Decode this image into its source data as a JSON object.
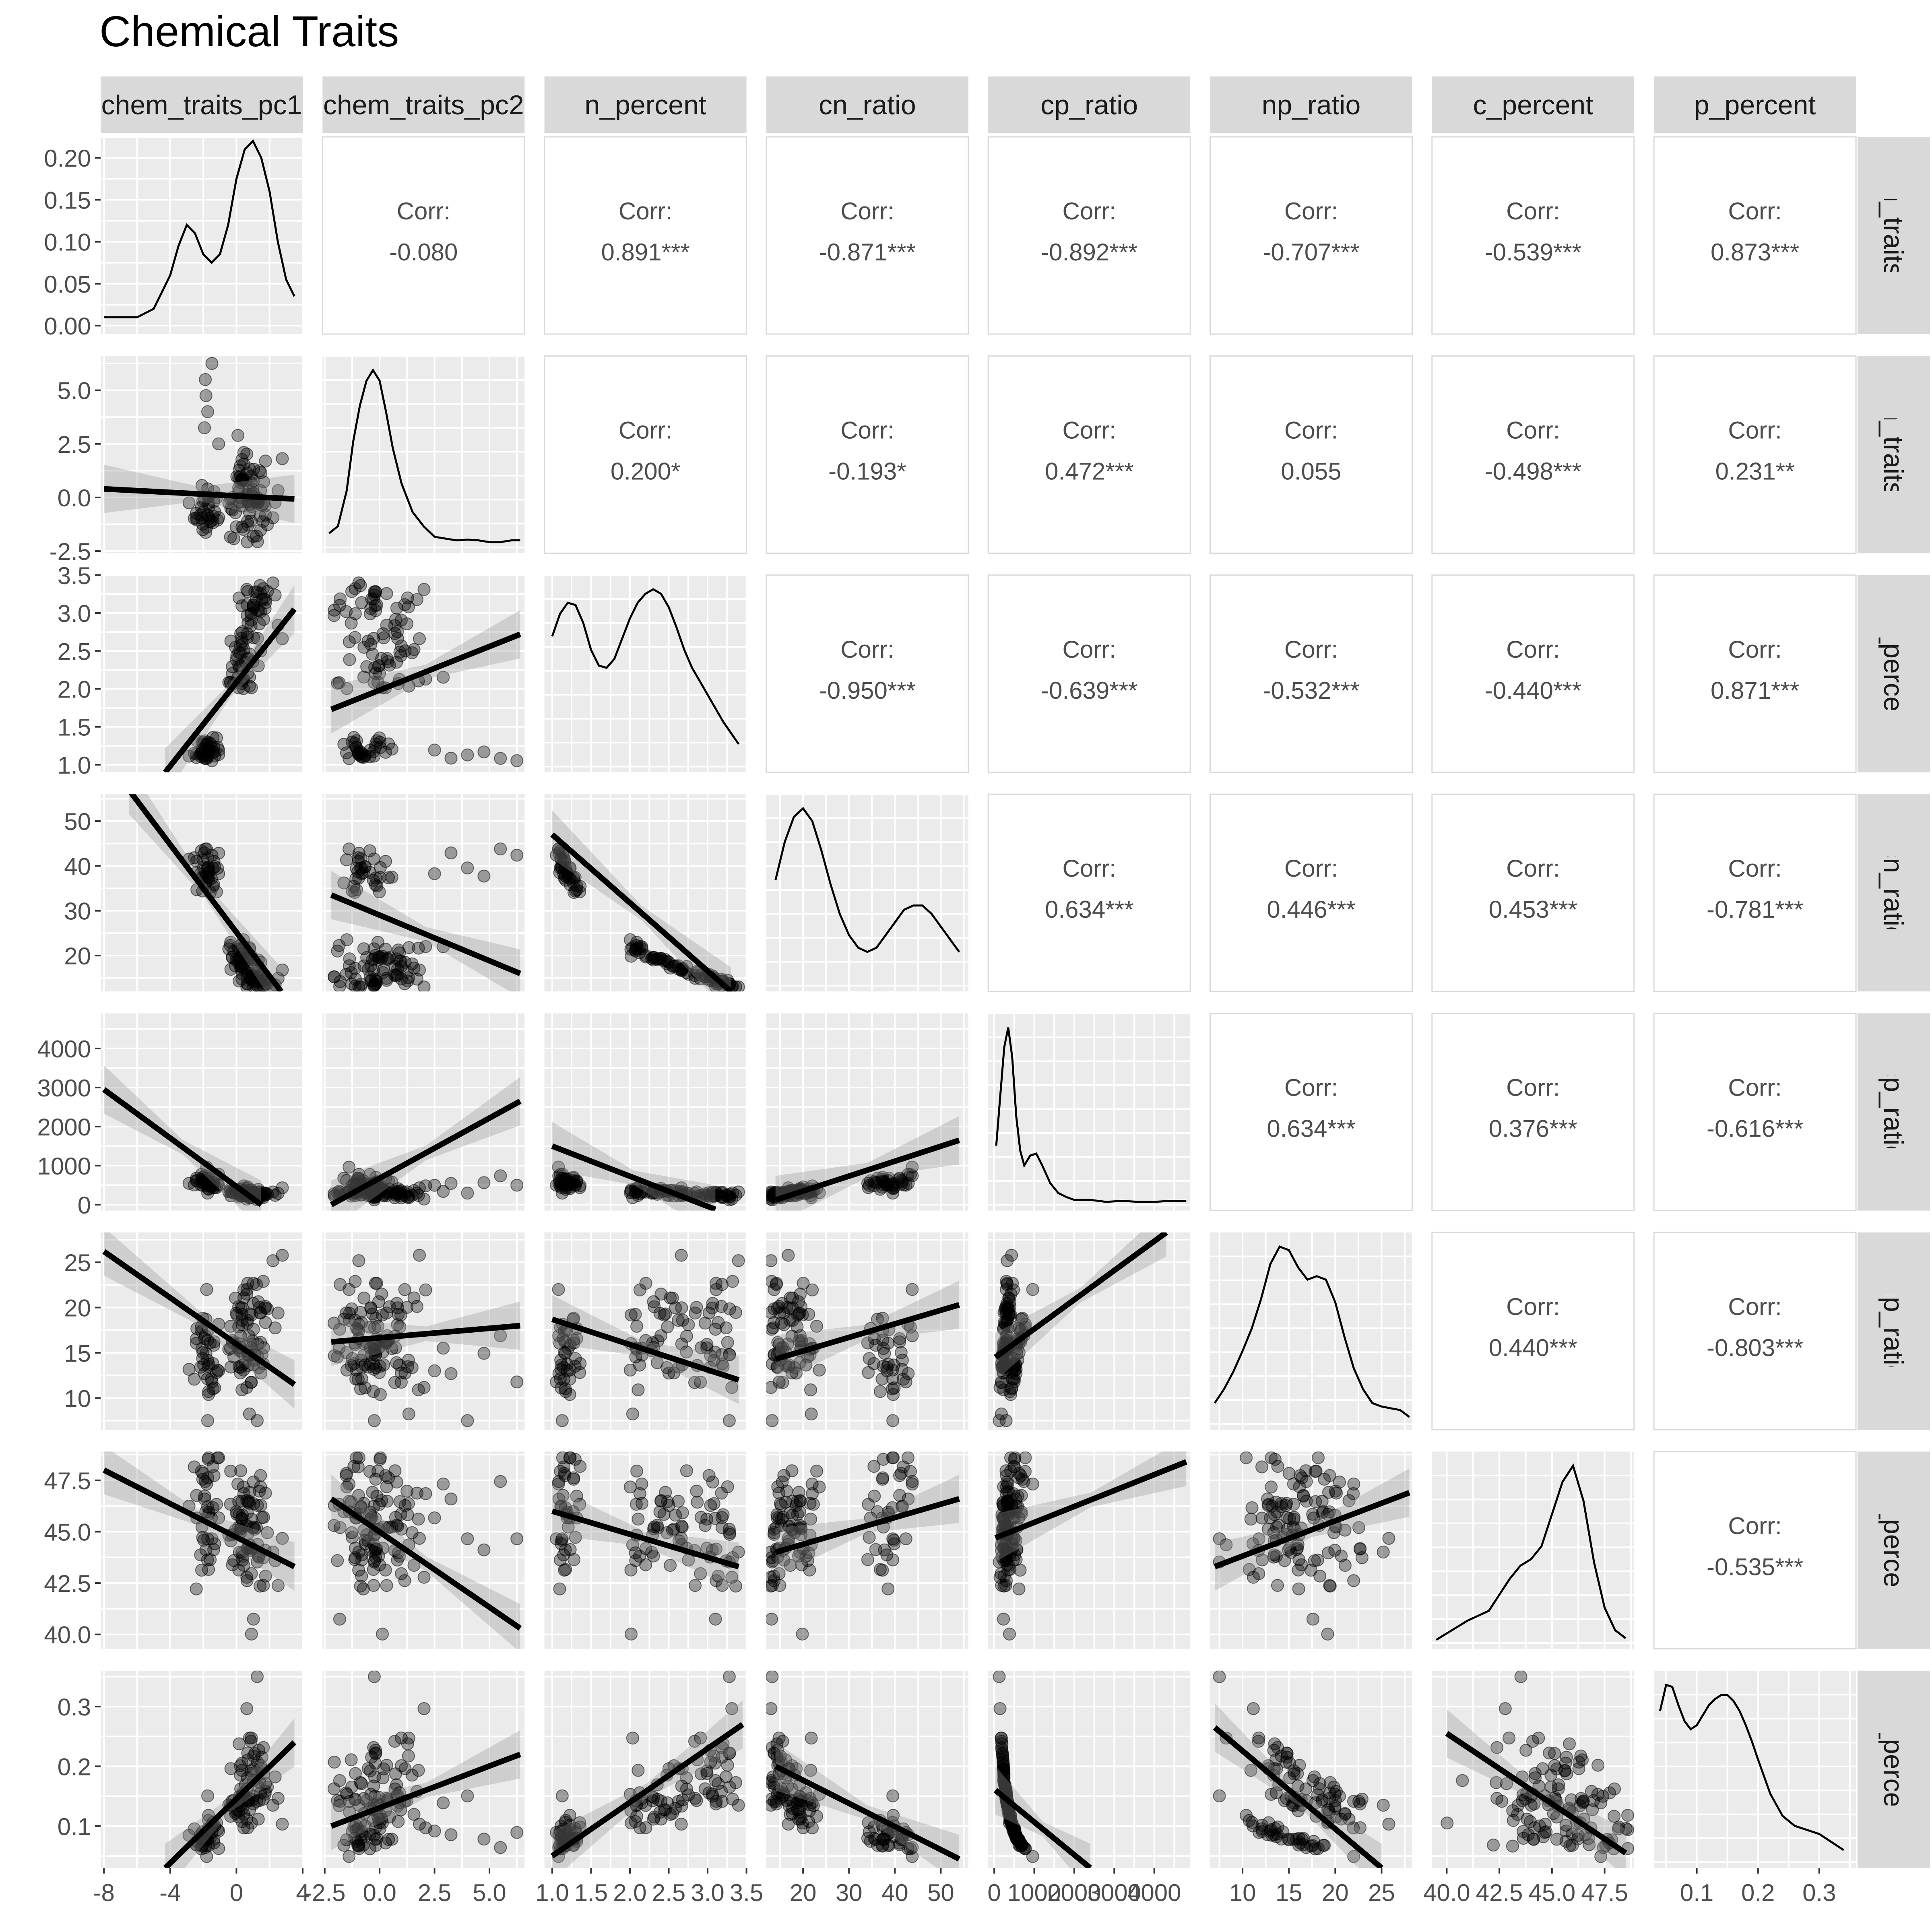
{
  "chart_data": {
    "type": "scatter",
    "title": "Chemical Traits",
    "variables": [
      "chem_traits_pc1",
      "chem_traits_pc2",
      "n_percent",
      "cn_ratio",
      "cp_ratio",
      "np_ratio",
      "c_percent",
      "p_percent"
    ],
    "ranges": [
      [
        -8.2,
        4.0
      ],
      [
        -2.6,
        6.6
      ],
      [
        0.9,
        3.5
      ],
      [
        12,
        56
      ],
      [
        -150,
        4900
      ],
      [
        6.5,
        28.3
      ],
      [
        39.3,
        48.9
      ],
      [
        0.03,
        0.36
      ]
    ],
    "y_ticks": [
      {
        "values": [
          0.0,
          0.05,
          0.1,
          0.15,
          0.2
        ],
        "labels": [
          "0.00",
          "0.05",
          "0.10",
          "0.15",
          "0.20"
        ],
        "range": [
          -0.01,
          0.225
        ]
      },
      {
        "values": [
          -2.5,
          0.0,
          2.5,
          5.0
        ],
        "labels": [
          "-2.5",
          "0.0",
          "2.5",
          "5.0"
        ]
      },
      {
        "values": [
          1.0,
          1.5,
          2.0,
          2.5,
          3.0,
          3.5
        ],
        "labels": [
          "1.0",
          "1.5",
          "2.0",
          "2.5",
          "3.0",
          "3.5"
        ]
      },
      {
        "values": [
          20,
          30,
          40,
          50
        ],
        "labels": [
          "20",
          "30",
          "40",
          "50"
        ]
      },
      {
        "values": [
          0,
          1000,
          2000,
          3000,
          4000
        ],
        "labels": [
          "0",
          "1000",
          "2000",
          "3000",
          "4000"
        ]
      },
      {
        "values": [
          10,
          15,
          20,
          25
        ],
        "labels": [
          "10",
          "15",
          "20",
          "25"
        ]
      },
      {
        "values": [
          40.0,
          42.5,
          45.0,
          47.5
        ],
        "labels": [
          "40.0",
          "42.5",
          "45.0",
          "47.5"
        ]
      },
      {
        "values": [
          0.1,
          0.2,
          0.3
        ],
        "labels": [
          "0.1",
          "0.2",
          "0.3"
        ]
      }
    ],
    "x_ticks": [
      {
        "values": [
          -8,
          -4,
          0,
          4
        ],
        "labels": [
          "-8",
          "-4",
          "0",
          "4"
        ]
      },
      {
        "values": [
          -2.5,
          0.0,
          2.5,
          5.0
        ],
        "labels": [
          "-2.5",
          "0.0",
          "2.5",
          "5.0"
        ]
      },
      {
        "values": [
          1.0,
          1.5,
          2.0,
          2.5,
          3.0,
          3.5
        ],
        "labels": [
          "1.0",
          "1.5",
          "2.0",
          "2.5",
          "3.0",
          "3.5"
        ]
      },
      {
        "values": [
          20,
          30,
          40,
          50
        ],
        "labels": [
          "20",
          "30",
          "40",
          "50"
        ]
      },
      {
        "values": [
          0,
          1000,
          2000,
          3000,
          4000
        ],
        "labels": [
          "0",
          "1000",
          "2000",
          "3000",
          "4000"
        ]
      },
      {
        "values": [
          10,
          15,
          20,
          25
        ],
        "labels": [
          "10",
          "15",
          "20",
          "25"
        ]
      },
      {
        "values": [
          40.0,
          42.5,
          45.0,
          47.5
        ],
        "labels": [
          "40.0",
          "42.5",
          "45.0",
          "47.5"
        ]
      },
      {
        "values": [
          0.1,
          0.2,
          0.3
        ],
        "labels": [
          "0.1",
          "0.2",
          "0.3"
        ]
      }
    ],
    "correlations": [
      {
        "row": 0,
        "col": 1,
        "label": "Corr:",
        "value": "-0.080"
      },
      {
        "row": 0,
        "col": 2,
        "label": "Corr:",
        "value": "0.891***"
      },
      {
        "row": 0,
        "col": 3,
        "label": "Corr:",
        "value": "-0.871***"
      },
      {
        "row": 0,
        "col": 4,
        "label": "Corr:",
        "value": "-0.892***"
      },
      {
        "row": 0,
        "col": 5,
        "label": "Corr:",
        "value": "-0.707***"
      },
      {
        "row": 0,
        "col": 6,
        "label": "Corr:",
        "value": "-0.539***"
      },
      {
        "row": 0,
        "col": 7,
        "label": "Corr:",
        "value": "0.873***"
      },
      {
        "row": 1,
        "col": 2,
        "label": "Corr:",
        "value": "0.200*"
      },
      {
        "row": 1,
        "col": 3,
        "label": "Corr:",
        "value": "-0.193*"
      },
      {
        "row": 1,
        "col": 4,
        "label": "Corr:",
        "value": "0.472***"
      },
      {
        "row": 1,
        "col": 5,
        "label": "Corr:",
        "value": "0.055"
      },
      {
        "row": 1,
        "col": 6,
        "label": "Corr:",
        "value": "-0.498***"
      },
      {
        "row": 1,
        "col": 7,
        "label": "Corr:",
        "value": "0.231**"
      },
      {
        "row": 2,
        "col": 3,
        "label": "Corr:",
        "value": "-0.950***"
      },
      {
        "row": 2,
        "col": 4,
        "label": "Corr:",
        "value": "-0.639***"
      },
      {
        "row": 2,
        "col": 5,
        "label": "Corr:",
        "value": "-0.532***"
      },
      {
        "row": 2,
        "col": 6,
        "label": "Corr:",
        "value": "-0.440***"
      },
      {
        "row": 2,
        "col": 7,
        "label": "Corr:",
        "value": "0.871***"
      },
      {
        "row": 3,
        "col": 4,
        "label": "Corr:",
        "value": "0.634***"
      },
      {
        "row": 3,
        "col": 5,
        "label": "Corr:",
        "value": "0.446***"
      },
      {
        "row": 3,
        "col": 6,
        "label": "Corr:",
        "value": "0.453***"
      },
      {
        "row": 3,
        "col": 7,
        "label": "Corr:",
        "value": "-0.781***"
      },
      {
        "row": 4,
        "col": 5,
        "label": "Corr:",
        "value": "0.634***"
      },
      {
        "row": 4,
        "col": 6,
        "label": "Corr:",
        "value": "0.376***"
      },
      {
        "row": 4,
        "col": 7,
        "label": "Corr:",
        "value": "-0.616***"
      },
      {
        "row": 5,
        "col": 6,
        "label": "Corr:",
        "value": "0.440***"
      },
      {
        "row": 5,
        "col": 7,
        "label": "Corr:",
        "value": "-0.803***"
      },
      {
        "row": 6,
        "col": 7,
        "label": "Corr:",
        "value": "-0.535***"
      }
    ],
    "densities": [
      {
        "var": "chem_traits_pc1",
        "x": [
          -8.0,
          -7.0,
          -6.0,
          -5.0,
          -4.0,
          -3.5,
          -3.0,
          -2.5,
          -2.0,
          -1.5,
          -1.0,
          -0.5,
          0.0,
          0.5,
          1.0,
          1.5,
          2.0,
          2.5,
          3.0,
          3.5
        ],
        "y": [
          0.01,
          0.01,
          0.01,
          0.02,
          0.06,
          0.095,
          0.12,
          0.11,
          0.085,
          0.075,
          0.085,
          0.12,
          0.175,
          0.21,
          0.22,
          0.2,
          0.16,
          0.1,
          0.055,
          0.035
        ]
      },
      {
        "var": "chem_traits_pc2",
        "x": [
          -2.3,
          -1.9,
          -1.5,
          -1.2,
          -0.9,
          -0.6,
          -0.3,
          0.0,
          0.3,
          0.6,
          1.0,
          1.5,
          2.0,
          2.5,
          3.0,
          3.5,
          4.0,
          4.5,
          5.0,
          5.5,
          6.0,
          6.4
        ],
        "y": [
          0.04,
          0.06,
          0.16,
          0.3,
          0.4,
          0.47,
          0.5,
          0.47,
          0.38,
          0.28,
          0.18,
          0.1,
          0.06,
          0.03,
          0.025,
          0.02,
          0.022,
          0.02,
          0.015,
          0.015,
          0.02,
          0.02
        ]
      },
      {
        "var": "n_percent",
        "x": [
          1.0,
          1.1,
          1.2,
          1.3,
          1.4,
          1.5,
          1.6,
          1.7,
          1.8,
          1.9,
          2.0,
          2.1,
          2.2,
          2.3,
          2.4,
          2.5,
          2.6,
          2.7,
          2.8,
          2.9,
          3.0,
          3.1,
          3.2,
          3.3,
          3.4
        ],
        "y": [
          0.58,
          0.68,
          0.73,
          0.72,
          0.64,
          0.52,
          0.45,
          0.44,
          0.48,
          0.57,
          0.66,
          0.73,
          0.77,
          0.79,
          0.77,
          0.71,
          0.62,
          0.52,
          0.44,
          0.38,
          0.32,
          0.26,
          0.2,
          0.15,
          0.1
        ]
      },
      {
        "var": "cn_ratio",
        "x": [
          14,
          16,
          18,
          20,
          22,
          24,
          26,
          28,
          30,
          32,
          34,
          36,
          38,
          40,
          42,
          44,
          46,
          48,
          50,
          52,
          54
        ],
        "y": [
          0.025,
          0.034,
          0.04,
          0.042,
          0.039,
          0.032,
          0.024,
          0.017,
          0.012,
          0.009,
          0.008,
          0.009,
          0.012,
          0.015,
          0.018,
          0.019,
          0.019,
          0.017,
          0.014,
          0.011,
          0.008
        ]
      },
      {
        "var": "cp_ratio",
        "x": [
          50,
          150,
          250,
          350,
          450,
          550,
          650,
          750,
          900,
          1050,
          1200,
          1400,
          1600,
          1800,
          2000,
          2400,
          2800,
          3200,
          3600,
          4000,
          4400,
          4800
        ],
        "y": [
          0.0006,
          0.0011,
          0.0016,
          0.0018,
          0.0015,
          0.0009,
          0.00055,
          0.0004,
          0.0005,
          0.00052,
          0.0004,
          0.00022,
          0.00012,
          8e-05,
          5e-05,
          5e-05,
          3e-05,
          4e-05,
          3e-05,
          3e-05,
          4e-05,
          4e-05
        ]
      },
      {
        "var": "np_ratio",
        "x": [
          7,
          8,
          9,
          10,
          11,
          12,
          13,
          14,
          15,
          16,
          17,
          18,
          19,
          20,
          21,
          22,
          23,
          24,
          25,
          26,
          27,
          28
        ],
        "y": [
          0.012,
          0.02,
          0.03,
          0.042,
          0.055,
          0.072,
          0.092,
          0.102,
          0.1,
          0.09,
          0.083,
          0.085,
          0.083,
          0.07,
          0.05,
          0.032,
          0.02,
          0.012,
          0.01,
          0.009,
          0.008,
          0.004
        ]
      },
      {
        "var": "c_percent",
        "x": [
          39.5,
          40.0,
          40.5,
          41.0,
          41.5,
          42.0,
          42.5,
          43.0,
          43.5,
          44.0,
          44.5,
          45.0,
          45.5,
          46.0,
          46.5,
          47.0,
          47.5,
          48.0,
          48.5
        ],
        "y": [
          0.01,
          0.03,
          0.05,
          0.07,
          0.085,
          0.1,
          0.15,
          0.2,
          0.24,
          0.26,
          0.3,
          0.4,
          0.5,
          0.55,
          0.44,
          0.25,
          0.11,
          0.04,
          0.015
        ]
      },
      {
        "var": "p_percent",
        "x": [
          0.04,
          0.05,
          0.06,
          0.07,
          0.08,
          0.09,
          0.1,
          0.11,
          0.12,
          0.13,
          0.14,
          0.15,
          0.16,
          0.17,
          0.18,
          0.19,
          0.2,
          0.22,
          0.24,
          0.26,
          0.28,
          0.3,
          0.32,
          0.34
        ],
        "y": [
          7.5,
          8.8,
          8.7,
          7.8,
          7.0,
          6.6,
          6.8,
          7.3,
          7.8,
          8.1,
          8.3,
          8.3,
          8.0,
          7.5,
          6.8,
          6.0,
          5.1,
          3.4,
          2.3,
          1.8,
          1.6,
          1.4,
          1.0,
          0.6
        ]
      }
    ],
    "regressions": [
      {
        "row": 1,
        "col": 0,
        "x": [
          -8.0,
          3.5
        ],
        "y": [
          0.4,
          -0.07
        ]
      },
      {
        "row": 2,
        "col": 0,
        "x": [
          -4.3,
          3.5
        ],
        "y": [
          0.9,
          3.05
        ]
      },
      {
        "row": 2,
        "col": 1,
        "x": [
          -2.2,
          6.4
        ],
        "y": [
          1.73,
          2.72
        ]
      },
      {
        "row": 3,
        "col": 0,
        "x": [
          -6.5,
          2.7
        ],
        "y": [
          57,
          12
        ]
      },
      {
        "row": 3,
        "col": 1,
        "x": [
          -2.2,
          6.4
        ],
        "y": [
          33.5,
          16
        ]
      },
      {
        "row": 3,
        "col": 2,
        "x": [
          1.0,
          3.3
        ],
        "y": [
          47,
          12
        ]
      },
      {
        "row": 4,
        "col": 0,
        "x": [
          -8.0,
          1.5
        ],
        "y": [
          2950,
          0
        ]
      },
      {
        "row": 4,
        "col": 1,
        "x": [
          -2.2,
          6.4
        ],
        "y": [
          0,
          2650
        ]
      },
      {
        "row": 4,
        "col": 2,
        "x": [
          1.0,
          3.1
        ],
        "y": [
          1500,
          -120
        ]
      },
      {
        "row": 4,
        "col": 3,
        "x": [
          14,
          54
        ],
        "y": [
          120,
          1650
        ]
      },
      {
        "row": 5,
        "col": 0,
        "x": [
          -8.0,
          3.5
        ],
        "y": [
          26.2,
          11.5
        ]
      },
      {
        "row": 5,
        "col": 1,
        "x": [
          -2.2,
          6.4
        ],
        "y": [
          16.2,
          18.0
        ]
      },
      {
        "row": 5,
        "col": 2,
        "x": [
          1.0,
          3.4
        ],
        "y": [
          18.7,
          12.0
        ]
      },
      {
        "row": 5,
        "col": 3,
        "x": [
          14,
          54
        ],
        "y": [
          14.3,
          20.3
        ]
      },
      {
        "row": 5,
        "col": 4,
        "x": [
          30,
          4300
        ],
        "y": [
          14.5,
          28.3
        ]
      },
      {
        "row": 6,
        "col": 0,
        "x": [
          -8.0,
          3.5
        ],
        "y": [
          48.0,
          43.3
        ]
      },
      {
        "row": 6,
        "col": 1,
        "x": [
          -2.2,
          6.4
        ],
        "y": [
          46.6,
          40.3
        ]
      },
      {
        "row": 6,
        "col": 2,
        "x": [
          1.0,
          3.4
        ],
        "y": [
          46.0,
          43.3
        ]
      },
      {
        "row": 6,
        "col": 3,
        "x": [
          14,
          54
        ],
        "y": [
          44.0,
          46.6
        ]
      },
      {
        "row": 6,
        "col": 4,
        "x": [
          30,
          4800
        ],
        "y": [
          44.7,
          48.4
        ]
      },
      {
        "row": 6,
        "col": 5,
        "x": [
          7,
          28
        ],
        "y": [
          43.3,
          46.9
        ]
      },
      {
        "row": 7,
        "col": 0,
        "x": [
          -4.3,
          3.5
        ],
        "y": [
          0.03,
          0.24
        ]
      },
      {
        "row": 7,
        "col": 1,
        "x": [
          -2.2,
          6.4
        ],
        "y": [
          0.1,
          0.22
        ]
      },
      {
        "row": 7,
        "col": 2,
        "x": [
          1.0,
          3.45
        ],
        "y": [
          0.05,
          0.27
        ]
      },
      {
        "row": 7,
        "col": 3,
        "x": [
          14,
          54
        ],
        "y": [
          0.2,
          0.045
        ]
      },
      {
        "row": 7,
        "col": 4,
        "x": [
          30,
          2400
        ],
        "y": [
          0.16,
          0.03
        ]
      },
      {
        "row": 7,
        "col": 5,
        "x": [
          7,
          25
        ],
        "y": [
          0.265,
          0.03
        ]
      },
      {
        "row": 7,
        "col": 6,
        "x": [
          40,
          48.5
        ],
        "y": [
          0.255,
          0.055
        ]
      }
    ],
    "colors": {
      "panel_background": "#ebebeb",
      "grid_major": "#ffffff",
      "strip_background": "#d9d9d9",
      "points": "#000000",
      "regression_line": "#000000",
      "confidence_band": "#999999",
      "corr_text": "#4d4d4d",
      "axis_text": "#4d4d4d"
    },
    "point_alpha": 0.35,
    "grid": true
  }
}
